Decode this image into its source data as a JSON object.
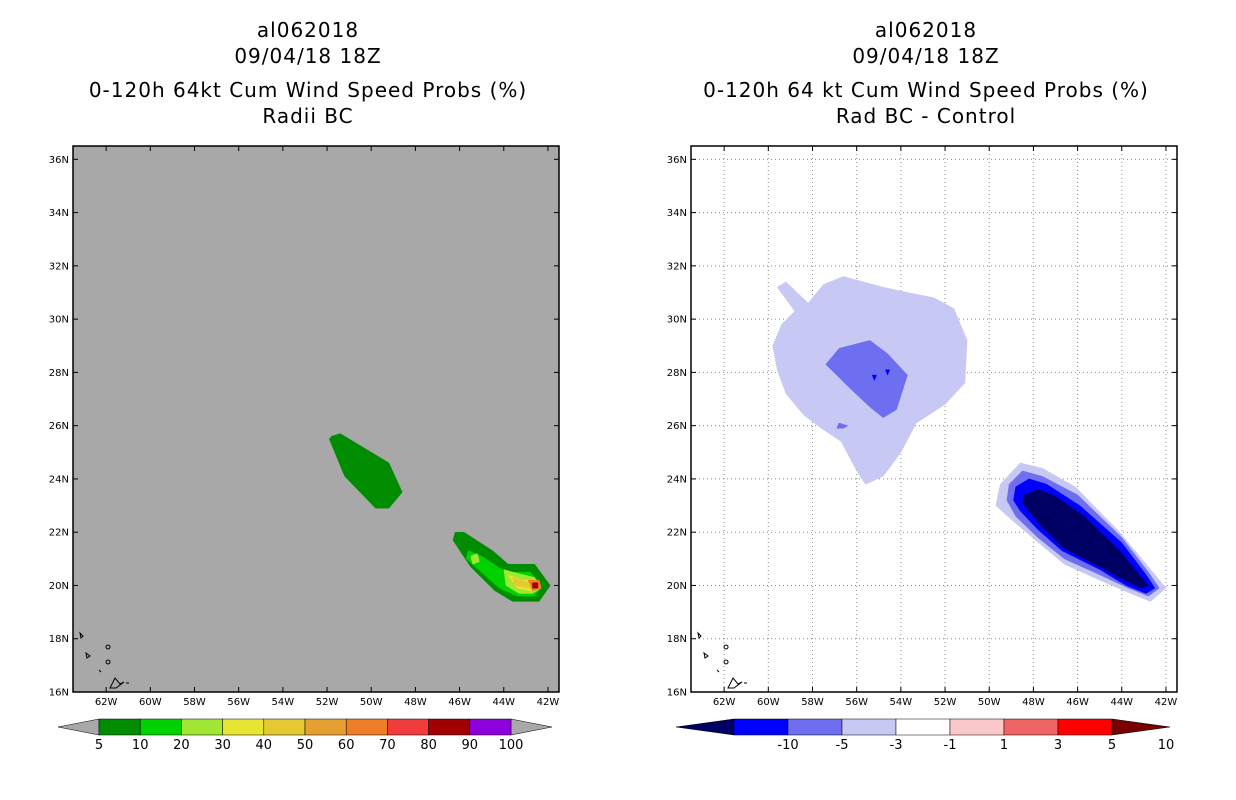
{
  "panels": [
    {
      "id": "left",
      "storm_id": "al062018",
      "date": "09/04/18 18Z",
      "title": "0-120h 64kt Cum Wind Speed Probs (%)",
      "subtitle": "Radii BC",
      "background": "#a8a8a8",
      "lat_labels": [
        "36N",
        "34N",
        "32N",
        "30N",
        "28N",
        "26N",
        "24N",
        "22N",
        "20N",
        "18N",
        "16N"
      ],
      "lon_labels": [
        "62W",
        "60W",
        "58W",
        "56W",
        "54W",
        "52W",
        "50W",
        "48W",
        "46W",
        "44W",
        "42W"
      ],
      "colorbar": {
        "labels": [
          "5",
          "10",
          "20",
          "30",
          "40",
          "50",
          "60",
          "70",
          "80",
          "90",
          "100"
        ],
        "colors": [
          "#008c00",
          "#00d200",
          "#a0e632",
          "#e6e632",
          "#e6c832",
          "#e6a032",
          "#f07d28",
          "#f03c3c",
          "#a00000",
          "#8c00dc"
        ],
        "end_color": "#a8a8a8"
      }
    },
    {
      "id": "right",
      "storm_id": "al062018",
      "date": "09/04/18 18Z",
      "title": "0-120h 64 kt Cum Wind Speed Probs (%)",
      "subtitle": "Rad BC - Control",
      "background": "#ffffff",
      "lat_labels": [
        "36N",
        "34N",
        "32N",
        "30N",
        "28N",
        "26N",
        "24N",
        "22N",
        "20N",
        "18N",
        "16N"
      ],
      "lon_labels": [
        "62W",
        "60W",
        "58W",
        "56W",
        "54W",
        "52W",
        "50W",
        "48W",
        "46W",
        "44W",
        "42W"
      ],
      "colorbar": {
        "labels": [
          "-10",
          "-5",
          "-3",
          "-1",
          "1",
          "3",
          "5",
          "10"
        ],
        "colors": [
          "#0000ff",
          "#6e6ef0",
          "#c8c8f5",
          "#ffffff",
          "#fac8c8",
          "#f06464",
          "#ff0000"
        ],
        "low_end_color": "#000064",
        "high_end_color": "#780000"
      }
    }
  ],
  "chart_data": [
    {
      "type": "heatmap",
      "title": "0-120h 64kt Cum Wind Speed Probs (%)",
      "subtitle": "Radii BC",
      "xlim": [
        -63.5,
        -41.5
      ],
      "ylim": [
        16,
        36.5
      ],
      "units": "%",
      "contour_levels": [
        5,
        10,
        20,
        30,
        40,
        50,
        60,
        70,
        80,
        90,
        100
      ],
      "regions": [
        {
          "level": 5,
          "description": "band",
          "center_lon": -50.2,
          "center_lat": 24.7,
          "polygon": [
            [
              -51.8,
              25.6
            ],
            [
              -51.4,
              25.7
            ],
            [
              -49.2,
              24.6
            ],
            [
              -48.6,
              23.5
            ],
            [
              -49.2,
              22.9
            ],
            [
              -49.8,
              22.9
            ],
            [
              -51.2,
              24.1
            ],
            [
              -51.9,
              25.5
            ]
          ]
        },
        {
          "level": 5,
          "description": "band",
          "center_lon": -44.5,
          "center_lat": 21.0,
          "polygon": [
            [
              -46.2,
              22.0
            ],
            [
              -45.8,
              22.0
            ],
            [
              -44.5,
              21.3
            ],
            [
              -43.8,
              20.8
            ],
            [
              -42.6,
              20.8
            ],
            [
              -41.9,
              20.0
            ],
            [
              -42.4,
              19.4
            ],
            [
              -43.6,
              19.4
            ],
            [
              -44.4,
              19.8
            ],
            [
              -45.5,
              20.7
            ],
            [
              -46.3,
              21.7
            ]
          ]
        },
        {
          "level": 10,
          "center_lon": -44.5,
          "center_lat": 20.7,
          "polygon": [
            [
              -45.6,
              21.3
            ],
            [
              -45.0,
              21.1
            ],
            [
              -43.9,
              20.5
            ],
            [
              -42.8,
              20.5
            ],
            [
              -42.3,
              20.0
            ],
            [
              -42.6,
              19.6
            ],
            [
              -43.4,
              19.6
            ],
            [
              -44.2,
              19.9
            ],
            [
              -45.7,
              21.0
            ]
          ]
        },
        {
          "level": 20,
          "center_lon": -45.3,
          "center_lat": 21.0,
          "polygon": [
            [
              -45.5,
              21.1
            ],
            [
              -45.2,
              21.2
            ],
            [
              -45.1,
              20.9
            ],
            [
              -45.4,
              20.8
            ]
          ]
        },
        {
          "level": 20,
          "center_lon": -43.3,
          "center_lat": 20.1,
          "polygon": [
            [
              -44.0,
              20.6
            ],
            [
              -43.6,
              20.5
            ],
            [
              -42.6,
              20.3
            ],
            [
              -42.3,
              19.9
            ],
            [
              -42.7,
              19.7
            ],
            [
              -43.3,
              19.7
            ],
            [
              -43.9,
              20.0
            ]
          ]
        },
        {
          "level": 30,
          "center_lon": -43.0,
          "center_lat": 20.1,
          "polygon": [
            [
              -43.8,
              20.4
            ],
            [
              -43.2,
              20.2
            ],
            [
              -42.5,
              20.2
            ],
            [
              -42.4,
              19.9
            ],
            [
              -42.8,
              19.8
            ],
            [
              -43.4,
              19.9
            ]
          ]
        },
        {
          "level": 40,
          "center_lon": -43.1,
          "center_lat": 20.1,
          "polygon": [
            [
              -43.6,
              20.3
            ],
            [
              -42.9,
              20.1
            ],
            [
              -42.8,
              19.9
            ],
            [
              -43.5,
              20.0
            ]
          ]
        },
        {
          "level": 60,
          "center_lon": -42.6,
          "center_lat": 20.0,
          "polygon": [
            [
              -42.9,
              20.2
            ],
            [
              -42.4,
              20.2
            ],
            [
              -42.3,
              19.9
            ],
            [
              -42.7,
              19.8
            ]
          ]
        },
        {
          "level": 80,
          "center_lon": -42.6,
          "center_lat": 20.0,
          "polygon": [
            [
              -42.7,
              20.1
            ],
            [
              -42.45,
              20.1
            ],
            [
              -42.45,
              19.9
            ],
            [
              -42.7,
              19.9
            ]
          ]
        }
      ]
    },
    {
      "type": "heatmap",
      "title": "0-120h 64 kt Cum Wind Speed Probs (%)",
      "subtitle": "Rad BC - Control",
      "xlim": [
        -63.5,
        -41.5
      ],
      "ylim": [
        16,
        36.5
      ],
      "units": "%",
      "contour_levels": [
        -10,
        -5,
        -3,
        -1,
        1,
        3,
        5,
        10
      ],
      "regions": [
        {
          "level": -1,
          "center_lon": -55.0,
          "center_lat": 28.3,
          "polygon": [
            [
              -59.6,
              31.2
            ],
            [
              -59.2,
              31.4
            ],
            [
              -58.2,
              30.6
            ],
            [
              -57.5,
              31.3
            ],
            [
              -56.6,
              31.6
            ],
            [
              -54.8,
              31.2
            ],
            [
              -53.7,
              31.0
            ],
            [
              -52.5,
              30.8
            ],
            [
              -51.6,
              30.4
            ],
            [
              -51.0,
              29.2
            ],
            [
              -51.1,
              27.6
            ],
            [
              -52.0,
              26.8
            ],
            [
              -53.3,
              26.1
            ],
            [
              -54.0,
              25.0
            ],
            [
              -54.8,
              24.1
            ],
            [
              -55.6,
              23.8
            ],
            [
              -56.0,
              24.3
            ],
            [
              -56.7,
              25.4
            ],
            [
              -57.6,
              25.9
            ],
            [
              -58.4,
              26.4
            ],
            [
              -59.2,
              27.2
            ],
            [
              -59.6,
              28.1
            ],
            [
              -59.8,
              29.0
            ],
            [
              -59.4,
              29.8
            ],
            [
              -58.8,
              30.3
            ]
          ]
        },
        {
          "level": -3,
          "center_lon": -55.0,
          "center_lat": 28.3,
          "polygon": [
            [
              -57.4,
              28.3
            ],
            [
              -56.8,
              28.9
            ],
            [
              -55.4,
              29.2
            ],
            [
              -54.6,
              28.7
            ],
            [
              -53.7,
              27.9
            ],
            [
              -54.2,
              26.6
            ],
            [
              -54.8,
              26.3
            ],
            [
              -55.4,
              26.7
            ],
            [
              -56.3,
              27.4
            ]
          ]
        },
        {
          "level": -3,
          "center_lon": -56.7,
          "center_lat": 26.0,
          "polygon": [
            [
              -56.8,
              26.1
            ],
            [
              -56.4,
              26.0
            ],
            [
              -56.6,
              25.9
            ],
            [
              -56.9,
              25.9
            ]
          ]
        },
        {
          "level": -5,
          "center_lon": -55.2,
          "center_lat": 27.8,
          "polygon": [
            [
              -55.3,
              27.9
            ],
            [
              -55.1,
              27.9
            ],
            [
              -55.2,
              27.7
            ]
          ]
        },
        {
          "level": -5,
          "center_lon": -54.6,
          "center_lat": 28.0,
          "polygon": [
            [
              -54.7,
              28.1
            ],
            [
              -54.5,
              28.1
            ],
            [
              -54.6,
              27.9
            ]
          ]
        },
        {
          "level": -1,
          "description": "ridge",
          "center_lon": -46.0,
          "center_lat": 21.8,
          "polygon": [
            [
              -49.5,
              23.8
            ],
            [
              -48.6,
              24.6
            ],
            [
              -47.6,
              24.4
            ],
            [
              -46.1,
              23.7
            ],
            [
              -44.1,
              22.0
            ],
            [
              -42.8,
              20.7
            ],
            [
              -42.0,
              19.9
            ],
            [
              -42.7,
              19.4
            ],
            [
              -43.6,
              19.7
            ],
            [
              -45.0,
              20.2
            ],
            [
              -46.6,
              20.8
            ],
            [
              -47.9,
              21.7
            ],
            [
              -48.9,
              22.4
            ],
            [
              -49.7,
              23.0
            ]
          ]
        },
        {
          "level": -3,
          "center_lon": -46.0,
          "center_lat": 21.8,
          "polygon": [
            [
              -49.1,
              23.8
            ],
            [
              -48.5,
              24.3
            ],
            [
              -47.6,
              24.1
            ],
            [
              -46.0,
              23.4
            ],
            [
              -44.0,
              21.8
            ],
            [
              -42.8,
              20.5
            ],
            [
              -42.3,
              19.9
            ],
            [
              -42.8,
              19.6
            ],
            [
              -43.7,
              19.9
            ],
            [
              -45.0,
              20.4
            ],
            [
              -46.6,
              21.0
            ],
            [
              -47.8,
              21.8
            ],
            [
              -48.8,
              22.6
            ],
            [
              -49.2,
              23.2
            ]
          ]
        },
        {
          "level": -5,
          "center_lon": -46.0,
          "center_lat": 21.7,
          "polygon": [
            [
              -48.8,
              23.7
            ],
            [
              -48.2,
              24.0
            ],
            [
              -47.4,
              23.8
            ],
            [
              -45.9,
              23.0
            ],
            [
              -44.0,
              21.6
            ],
            [
              -42.9,
              20.4
            ],
            [
              -42.5,
              19.9
            ],
            [
              -42.9,
              19.7
            ],
            [
              -43.8,
              20.0
            ],
            [
              -45.0,
              20.6
            ],
            [
              -46.7,
              21.3
            ],
            [
              -47.8,
              22.1
            ],
            [
              -48.6,
              22.8
            ],
            [
              -48.9,
              23.2
            ]
          ]
        },
        {
          "level": -10,
          "center_lon": -46.0,
          "center_lat": 21.6,
          "polygon": [
            [
              -48.4,
              23.4
            ],
            [
              -47.8,
              23.6
            ],
            [
              -47.1,
              23.4
            ],
            [
              -45.7,
              22.6
            ],
            [
              -44.1,
              21.3
            ],
            [
              -43.1,
              20.3
            ],
            [
              -42.8,
              20.0
            ],
            [
              -43.1,
              19.9
            ],
            [
              -43.9,
              20.2
            ],
            [
              -45.0,
              20.7
            ],
            [
              -46.6,
              21.4
            ],
            [
              -47.6,
              22.2
            ],
            [
              -48.2,
              22.8
            ],
            [
              -48.5,
              23.1
            ]
          ]
        }
      ]
    }
  ]
}
